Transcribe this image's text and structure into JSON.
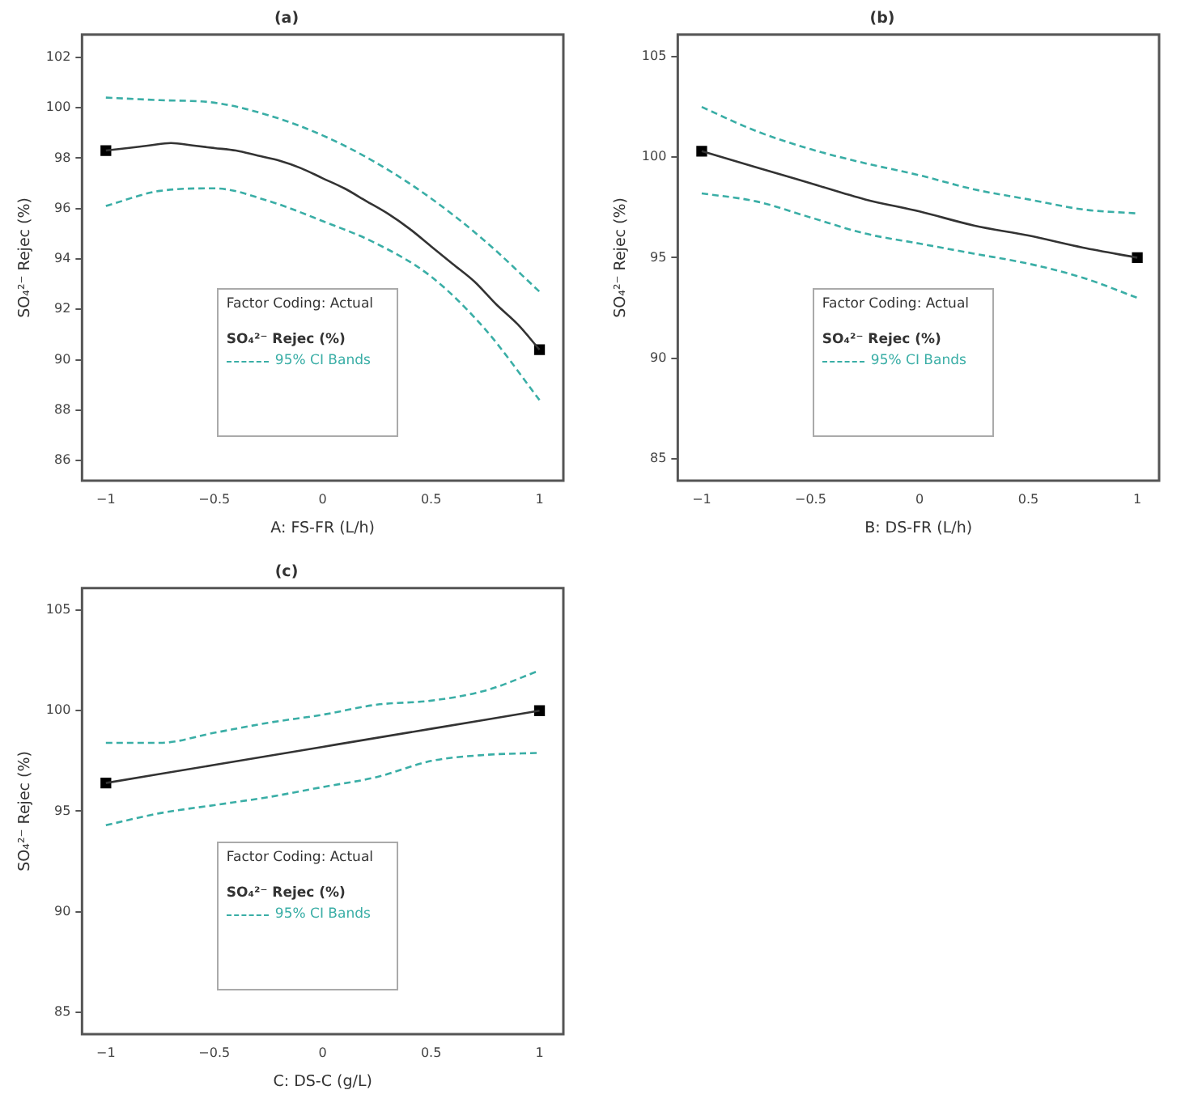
{
  "chart_data": [
    {
      "type": "line",
      "title": "(a)",
      "xlabel": "A: FS-FR (L/h)",
      "ylabel": "SO₄²⁻ Rejec (%)",
      "legend_title": "Factor Coding: Actual",
      "legend": "bottom left",
      "xlim": [
        -1.11,
        1.11
      ],
      "xticks": [
        -1,
        -0.5,
        0,
        0.5,
        1
      ],
      "ylim": [
        85.2,
        102.9
      ],
      "yticks": [
        86,
        88,
        90,
        92,
        94,
        96,
        98,
        100,
        102
      ],
      "series": [
        {
          "name": "SO₄²⁻ Rejec (%)",
          "color": "#333333",
          "line_style": "solid",
          "x": [
            -1,
            -0.9,
            -0.8,
            -0.7,
            -0.6,
            -0.5,
            -0.4,
            -0.3,
            -0.2,
            -0.1,
            0,
            0.1,
            0.2,
            0.3,
            0.4,
            0.5,
            0.6,
            0.7,
            0.8,
            0.9,
            1
          ],
          "values": [
            98.3,
            98.4,
            98.5,
            98.6,
            98.5,
            98.4,
            98.3,
            98.1,
            97.9,
            97.6,
            97.2,
            96.8,
            96.3,
            95.8,
            95.2,
            94.5,
            93.8,
            93.1,
            92.2,
            91.4,
            90.4
          ]
        },
        {
          "name": "95% CI Bands",
          "color": "#3aaea6",
          "line_style": "dashed",
          "x": [
            -1,
            -0.75,
            -0.5,
            -0.25,
            0,
            0.25,
            0.5,
            0.75,
            1
          ],
          "values": [
            100.4,
            100.3,
            100.2,
            99.7,
            98.9,
            97.8,
            96.4,
            94.7,
            92.7
          ]
        },
        {
          "color": "#3aaea6",
          "line_style": "dashed",
          "x": [
            -1,
            -0.75,
            -0.5,
            -0.25,
            0,
            0.25,
            0.5,
            0.75,
            1
          ],
          "values": [
            96.1,
            96.7,
            96.8,
            96.3,
            95.5,
            94.6,
            93.3,
            91.2,
            88.4
          ]
        },
        {
          "type": "scatter",
          "color": "#000000",
          "marker": "square",
          "x": [
            -1,
            1
          ],
          "values": [
            98.3,
            90.4
          ]
        }
      ]
    },
    {
      "type": "line",
      "title": "(b)",
      "xlabel": "B: DS-FR (L/h)",
      "ylabel": "SO₄²⁻ Rejec (%)",
      "legend_title": "Factor Coding: Actual",
      "legend": "bottom left",
      "xlim": [
        -1.11,
        1.1
      ],
      "xticks": [
        -1,
        -0.5,
        0,
        0.5,
        1
      ],
      "ylim": [
        83.9,
        106.1
      ],
      "yticks": [
        85,
        90,
        95,
        100,
        105
      ],
      "series": [
        {
          "name": "SO₄²⁻ Rejec (%)",
          "color": "#333333",
          "line_style": "solid",
          "x": [
            -1,
            -0.75,
            -0.5,
            -0.25,
            0,
            0.25,
            0.5,
            0.75,
            1
          ],
          "values": [
            100.3,
            99.5,
            98.7,
            97.9,
            97.3,
            96.6,
            96.1,
            95.5,
            95.0
          ]
        },
        {
          "name": "95% CI Bands",
          "color": "#3aaea6",
          "line_style": "dashed",
          "x": [
            -1,
            -0.75,
            -0.5,
            -0.25,
            0,
            0.25,
            0.5,
            0.75,
            1
          ],
          "values": [
            102.5,
            101.3,
            100.4,
            99.7,
            99.1,
            98.4,
            97.9,
            97.4,
            97.2
          ]
        },
        {
          "color": "#3aaea6",
          "line_style": "dashed",
          "x": [
            -1,
            -0.75,
            -0.5,
            -0.25,
            0,
            0.25,
            0.5,
            0.75,
            1
          ],
          "values": [
            98.2,
            97.8,
            97.0,
            96.2,
            95.7,
            95.2,
            94.7,
            94.0,
            93.0
          ]
        },
        {
          "type": "scatter",
          "color": "#000000",
          "marker": "square",
          "x": [
            -1,
            1
          ],
          "values": [
            100.3,
            95.0
          ]
        }
      ]
    },
    {
      "type": "line",
      "title": "(c)",
      "xlabel": "C: DS-C (g/L)",
      "ylabel": "SO₄²⁻ Rejec (%)",
      "legend_title": "Factor Coding: Actual",
      "legend": "bottom left",
      "xlim": [
        -1.11,
        1.11
      ],
      "xticks": [
        -1,
        -0.5,
        0,
        0.5,
        1
      ],
      "ylim": [
        83.9,
        106.1
      ],
      "yticks": [
        85,
        90,
        95,
        100,
        105
      ],
      "series": [
        {
          "name": "SO₄²⁻ Rejec (%)",
          "color": "#333333",
          "line_style": "solid",
          "x": [
            -1,
            -0.5,
            0,
            0.5,
            1
          ],
          "values": [
            96.4,
            97.3,
            98.2,
            99.1,
            100.0
          ]
        },
        {
          "name": "95% CI Bands",
          "color": "#3aaea6",
          "line_style": "dashed",
          "x": [
            -1,
            -0.75,
            -0.5,
            -0.25,
            0,
            0.25,
            0.5,
            0.75,
            1
          ],
          "values": [
            98.4,
            98.4,
            98.9,
            99.4,
            99.8,
            100.3,
            100.5,
            101.0,
            102.0
          ]
        },
        {
          "color": "#3aaea6",
          "line_style": "dashed",
          "x": [
            -1,
            -0.75,
            -0.5,
            -0.25,
            0,
            0.25,
            0.5,
            0.75,
            1
          ],
          "values": [
            94.3,
            94.9,
            95.3,
            95.7,
            96.2,
            96.7,
            97.5,
            97.8,
            97.9
          ]
        },
        {
          "type": "scatter",
          "color": "#000000",
          "marker": "square",
          "x": [
            -1,
            1
          ],
          "values": [
            96.4,
            100.0
          ]
        }
      ]
    }
  ]
}
